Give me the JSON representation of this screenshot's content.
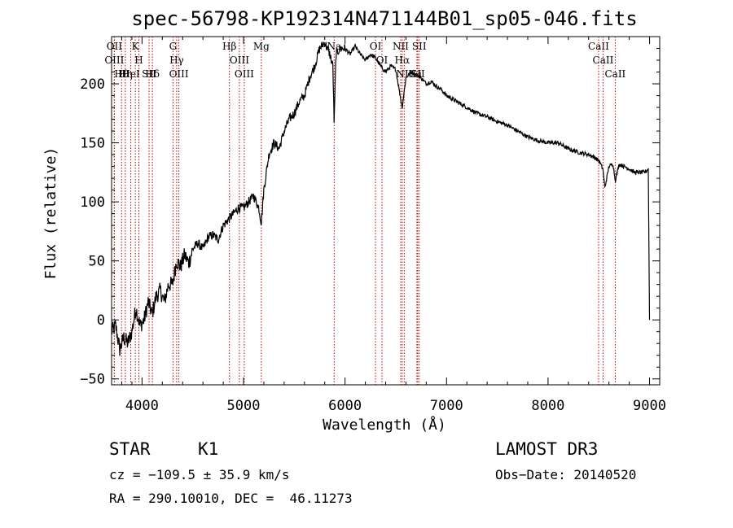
{
  "chart_data": {
    "type": "line",
    "title": "spec-56798-KP192314N471144B01_sp05-046.fits",
    "xlabel": "Wavelength (Å)",
    "ylabel": "Flux (relative)",
    "xlim": [
      3700,
      9100
    ],
    "ylim": [
      -55,
      240
    ],
    "xticks": [
      4000,
      5000,
      6000,
      7000,
      8000,
      9000
    ],
    "yticks": [
      -50,
      0,
      50,
      100,
      150,
      200
    ],
    "series": [
      {
        "name": "flux",
        "x": [
          3700,
          3740,
          3780,
          3820,
          3860,
          3900,
          3940,
          3980,
          4020,
          4060,
          4100,
          4140,
          4180,
          4220,
          4260,
          4300,
          4340,
          4380,
          4420,
          4460,
          4500,
          4550,
          4600,
          4650,
          4700,
          4750,
          4800,
          4850,
          4900,
          4950,
          5000,
          5050,
          5100,
          5150,
          5175,
          5200,
          5250,
          5300,
          5350,
          5400,
          5450,
          5500,
          5550,
          5600,
          5650,
          5700,
          5750,
          5800,
          5850,
          5880,
          5893,
          5910,
          5950,
          6000,
          6050,
          6100,
          6150,
          6200,
          6250,
          6300,
          6350,
          6400,
          6450,
          6500,
          6563,
          6600,
          6650,
          6700,
          6750,
          6800,
          6850,
          6900,
          6950,
          7000,
          7100,
          7200,
          7300,
          7400,
          7500,
          7600,
          7700,
          7800,
          7900,
          8000,
          8100,
          8200,
          8300,
          8400,
          8450,
          8500,
          8540,
          8560,
          8600,
          8640,
          8662,
          8700,
          8750,
          8800,
          8850,
          8900,
          8950,
          8990,
          9000
        ],
        "y": [
          -10,
          -5,
          -25,
          -15,
          -20,
          -10,
          10,
          -5,
          0,
          15,
          5,
          20,
          25,
          15,
          30,
          30,
          50,
          45,
          55,
          48,
          60,
          65,
          60,
          70,
          72,
          68,
          80,
          85,
          90,
          95,
          95,
          100,
          105,
          95,
          82,
          110,
          140,
          150,
          145,
          160,
          170,
          175,
          185,
          190,
          205,
          215,
          230,
          235,
          225,
          215,
          165,
          225,
          230,
          230,
          225,
          232,
          225,
          220,
          225,
          222,
          215,
          210,
          215,
          212,
          180,
          205,
          210,
          208,
          205,
          200,
          202,
          198,
          195,
          190,
          185,
          180,
          175,
          172,
          168,
          165,
          160,
          155,
          152,
          150,
          150,
          145,
          142,
          140,
          138,
          135,
          128,
          112,
          130,
          132,
          118,
          132,
          130,
          128,
          125,
          125,
          125,
          128,
          0
        ]
      }
    ],
    "line_markers": [
      {
        "label": "Hθ",
        "wavelength": 3798
      },
      {
        "label": "OII",
        "wavelength": 3727
      },
      {
        "label": "OIII",
        "wavelength": 3727
      },
      {
        "label": "K",
        "wavelength": 3934
      },
      {
        "label": "HeI",
        "wavelength": 3889
      },
      {
        "label": "Hη",
        "wavelength": 3835
      },
      {
        "label": "SII",
        "wavelength": 4069
      },
      {
        "label": "H",
        "wavelength": 3969
      },
      {
        "label": "Hδ",
        "wavelength": 4102
      },
      {
        "label": "OIII",
        "wavelength": 4363
      },
      {
        "label": "Hγ",
        "wavelength": 4341
      },
      {
        "label": "G",
        "wavelength": 4305
      },
      {
        "label": "Hβ",
        "wavelength": 4861
      },
      {
        "label": "OIII",
        "wavelength": 5007
      },
      {
        "label": "OIII",
        "wavelength": 4959
      },
      {
        "label": "Mg",
        "wavelength": 5175
      },
      {
        "label": "Na",
        "wavelength": 5893
      },
      {
        "label": "OI",
        "wavelength": 6300
      },
      {
        "label": "OI",
        "wavelength": 6364
      },
      {
        "label": "Hα",
        "wavelength": 6563
      },
      {
        "label": "NII",
        "wavelength": 6548
      },
      {
        "label": "NII",
        "wavelength": 6583
      },
      {
        "label": "SII",
        "wavelength": 6716
      },
      {
        "label": "Li",
        "wavelength": 6708
      },
      {
        "label": "SII",
        "wavelength": 6731
      },
      {
        "label": "CaII",
        "wavelength": 8542
      },
      {
        "label": "CaII",
        "wavelength": 8498
      },
      {
        "label": "CaII",
        "wavelength": 8662
      }
    ]
  },
  "info": {
    "object_class": "STAR",
    "subclass": "K1",
    "survey": "LAMOST DR3",
    "velocity": "cz = −109.5 ± 35.9 km/s",
    "obs_date": "Obs−Date: 20140520",
    "coords": "RA = 290.10010, DEC =  46.11273"
  }
}
